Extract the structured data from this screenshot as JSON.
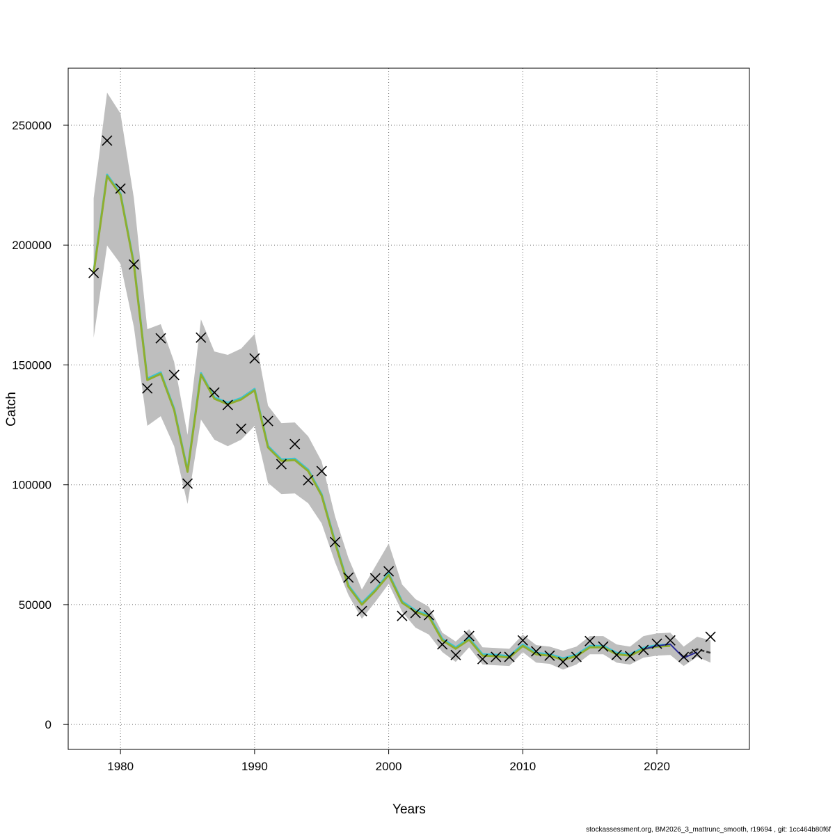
{
  "chart_data": {
    "type": "line",
    "title": "",
    "xlabel": "Years",
    "ylabel": "Catch",
    "xlim": [
      1976.1,
      2026.9
    ],
    "ylim": [
      -10400,
      273800
    ],
    "xticks": [
      1980,
      1990,
      2000,
      2010,
      2020
    ],
    "yticks": [
      0,
      50000,
      100000,
      150000,
      200000,
      250000
    ],
    "grid": true,
    "colors": {
      "band": "#bebebe",
      "fit": "#8fae2e",
      "fit_alt": "#3cc3d3",
      "peel": "#2a2a9a",
      "dashed": "#333333",
      "observed": "#000000"
    },
    "years": [
      1978,
      1979,
      1980,
      1981,
      1982,
      1983,
      1984,
      1985,
      1986,
      1987,
      1988,
      1989,
      1990,
      1991,
      1992,
      1993,
      1994,
      1995,
      1996,
      1997,
      1998,
      1999,
      2000,
      2001,
      2002,
      2003,
      2004,
      2005,
      2006,
      2007,
      2008,
      2009,
      2010,
      2011,
      2012,
      2013,
      2014,
      2015,
      2016,
      2017,
      2018,
      2019,
      2020,
      2021,
      2022,
      2023,
      2024
    ],
    "observed": [
      188400,
      243600,
      223600,
      191900,
      140200,
      161100,
      145800,
      100500,
      161400,
      138500,
      133300,
      123400,
      152700,
      126600,
      108600,
      117000,
      101900,
      105700,
      76100,
      61300,
      47300,
      61000,
      63900,
      45300,
      46500,
      45600,
      33400,
      29000,
      36900,
      27300,
      28200,
      28200,
      35100,
      30500,
      28700,
      26100,
      28200,
      34800,
      32500,
      29000,
      28500,
      31100,
      33700,
      35100,
      28200,
      29300,
      36600
    ],
    "fit": [
      188400,
      228800,
      221000,
      191900,
      143700,
      146300,
      131200,
      105400,
      146000,
      135900,
      133600,
      135600,
      139400,
      115600,
      110000,
      110300,
      105700,
      95500,
      75800,
      57500,
      50000,
      55700,
      62400,
      50800,
      47000,
      45000,
      35100,
      31600,
      35400,
      28700,
      28500,
      27900,
      32800,
      29300,
      28700,
      27000,
      28500,
      32200,
      32200,
      29300,
      28700,
      31400,
      32500,
      32800,
      28200,
      31400,
      29900
    ],
    "band_upper": [
      219500,
      263600,
      254900,
      219500,
      164900,
      167000,
      151300,
      120800,
      169000,
      155600,
      154200,
      156800,
      162900,
      133000,
      125700,
      126000,
      120200,
      109800,
      86800,
      69400,
      56300,
      65900,
      75500,
      58400,
      52300,
      49100,
      38300,
      34600,
      39800,
      32200,
      31900,
      31600,
      37500,
      33100,
      32500,
      30800,
      32500,
      36900,
      36900,
      33400,
      32500,
      36900,
      38000,
      38300,
      32500,
      36600,
      35100
    ],
    "band_lower": [
      161400,
      199800,
      192200,
      165800,
      124600,
      128600,
      116100,
      92000,
      127200,
      118800,
      116100,
      118800,
      124600,
      100800,
      96100,
      96400,
      92300,
      83900,
      67700,
      54000,
      44100,
      51100,
      58700,
      47000,
      40400,
      37500,
      30200,
      26100,
      32200,
      25000,
      24700,
      24400,
      30200,
      25800,
      25300,
      22900,
      25000,
      29300,
      29300,
      25800,
      25000,
      27900,
      28700,
      29000,
      24400,
      28200,
      25800
    ],
    "peel_line": {
      "years": [
        2019,
        2020,
        2021,
        2022,
        2023
      ],
      "values": [
        31400,
        32800,
        33500,
        27800,
        30200
      ]
    },
    "dashed_line": {
      "years": [
        2022,
        2023,
        2024
      ],
      "values": [
        28200,
        31400,
        29900
      ]
    }
  },
  "footer": "stockassessment.org, BM2026_3_mattrunc_smooth, r19694 , git: 1cc464b80f6f"
}
